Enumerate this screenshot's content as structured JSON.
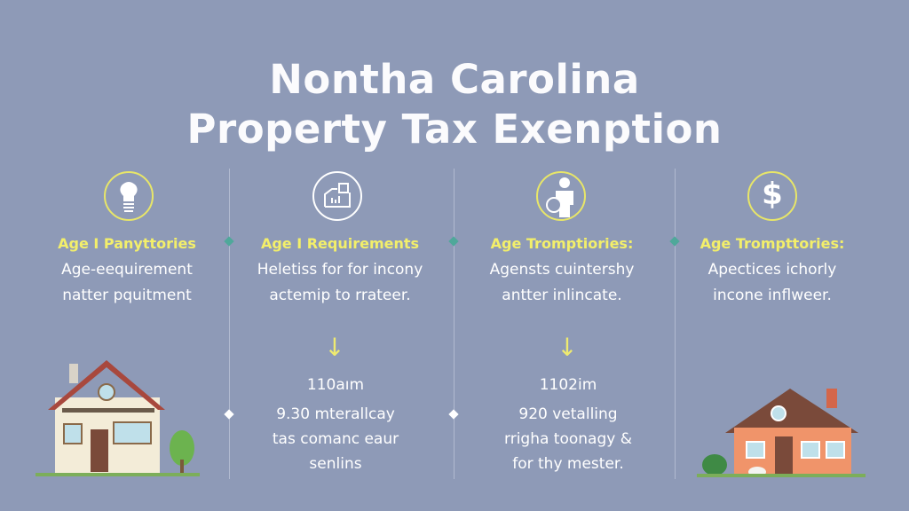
{
  "title": {
    "line1": "Nontha Carolina",
    "line2": "Property Tax Exenption"
  },
  "colors": {
    "background": "#8e9ab7",
    "heading": "#f3ef6a",
    "accent_teal": "#4fa89a"
  },
  "columns": [
    {
      "icon": "bulb-head-icon",
      "heading": "Age I Panyttories",
      "desc": [
        "Age-eequirement",
        "natter pquitment"
      ]
    },
    {
      "icon": "building-chart-icon",
      "heading": "Age I Requirements",
      "desc": [
        "Heletiss for for incony",
        "actemip to rrateer."
      ],
      "stat": "110aım",
      "stat_desc": [
        "9.30 mterallcay",
        "tas comanc eaur",
        "senlins"
      ]
    },
    {
      "icon": "person-icon",
      "heading": "Age Tromptiories:",
      "desc": [
        "Agensts cuintershy",
        "antter inlincate."
      ],
      "stat": "1102im",
      "stat_desc": [
        "920 vetalling",
        "rrigha toonagy &",
        "for thy mester."
      ]
    },
    {
      "icon": "dollar-icon",
      "heading": "Age Trompttories:",
      "desc": [
        "Apectices ichorly",
        "incone inflweer."
      ]
    }
  ]
}
